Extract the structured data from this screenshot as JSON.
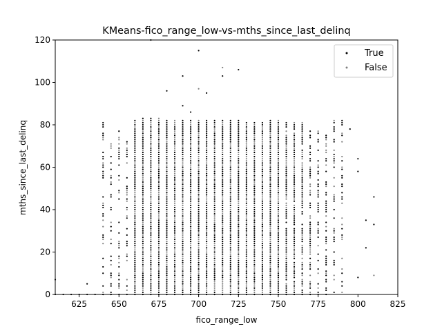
{
  "chart_data": {
    "type": "scatter",
    "title": "KMeans-fico_range_low-vs-mths_since_last_delinq",
    "xlabel": "fico_range_low",
    "ylabel": "mths_since_last_delinq",
    "xlim": [
      610,
      825
    ],
    "ylim": [
      0,
      120
    ],
    "xticks": [
      625,
      650,
      675,
      700,
      725,
      750,
      775,
      800,
      825
    ],
    "yticks": [
      0,
      20,
      40,
      60,
      80,
      100,
      120
    ],
    "grid": false,
    "legend_position": "top-right",
    "colors": {
      "True": "#000000",
      "False": "#808080"
    },
    "x_columns": [
      640,
      645,
      650,
      655,
      660,
      665,
      670,
      675,
      680,
      685,
      690,
      695,
      700,
      705,
      710,
      715,
      720,
      725,
      730,
      735,
      740,
      745,
      750,
      755,
      760,
      765,
      770,
      775,
      780,
      785,
      790
    ],
    "column_top": [
      81,
      70,
      77,
      73,
      82,
      83,
      83,
      83,
      82,
      82,
      82,
      82,
      82,
      82,
      82,
      82,
      82,
      82,
      81,
      81,
      81,
      82,
      82,
      81,
      82,
      81,
      78,
      78,
      75,
      82,
      82
    ],
    "column_density": [
      0.45,
      0.4,
      0.45,
      0.5,
      1,
      1,
      1,
      1,
      1,
      1,
      1,
      1,
      1,
      1,
      1,
      1,
      1,
      1,
      1,
      1,
      1,
      1,
      1,
      0.9,
      0.9,
      0.8,
      0.6,
      0.55,
      0.5,
      0.45,
      0.35
    ],
    "series": [
      {
        "name": "True",
        "points": [
          [
            610,
            7
          ],
          [
            630,
            5
          ],
          [
            640,
            81
          ],
          [
            645,
            62
          ],
          [
            650,
            77
          ],
          [
            655,
            66
          ],
          [
            670,
            120
          ],
          [
            680,
            96
          ],
          [
            690,
            89
          ],
          [
            690,
            103
          ],
          [
            695,
            86
          ],
          [
            700,
            115
          ],
          [
            705,
            95
          ],
          [
            715,
            103
          ],
          [
            725,
            106
          ],
          [
            780,
            2
          ],
          [
            785,
            20
          ],
          [
            795,
            78
          ],
          [
            800,
            8
          ],
          [
            800,
            64
          ],
          [
            800,
            58
          ],
          [
            805,
            22
          ],
          [
            805,
            35
          ],
          [
            810,
            33
          ],
          [
            810,
            46
          ]
        ]
      },
      {
        "name": "False",
        "points": [
          [
            645,
            71
          ],
          [
            650,
            68
          ],
          [
            700,
            97
          ],
          [
            715,
            107
          ],
          [
            790,
            60
          ],
          [
            790,
            43
          ],
          [
            785,
            31
          ],
          [
            810,
            9
          ]
        ]
      }
    ]
  }
}
